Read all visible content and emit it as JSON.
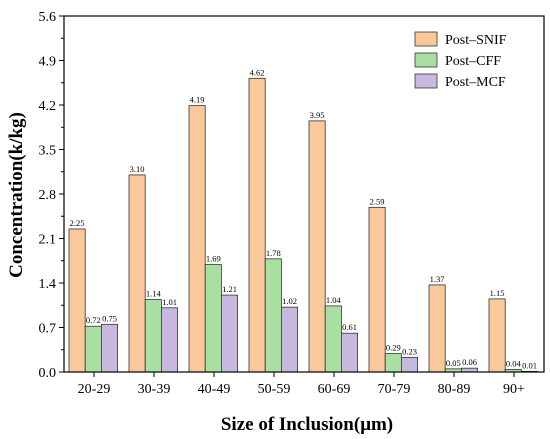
{
  "chart_data": {
    "type": "bar",
    "xlabel": "Size of Inclusion(μm)",
    "ylabel": "Concentration(k/kg)",
    "ylim": [
      0,
      5.6
    ],
    "yticks": [
      "0.0",
      "0.7",
      "1.4",
      "2.1",
      "2.8",
      "3.5",
      "4.2",
      "4.9",
      "5.6"
    ],
    "ytick_values": [
      0,
      0.7,
      1.4,
      2.1,
      2.8,
      3.5,
      4.2,
      4.9,
      5.6
    ],
    "grid": false,
    "legend_position": "top-right",
    "categories": [
      "20-29",
      "30-39",
      "40-49",
      "50-59",
      "60-69",
      "70-79",
      "80-89",
      "90+"
    ],
    "series": [
      {
        "name": "Post–SNIF",
        "color": "#f9c89b",
        "values": [
          2.25,
          3.1,
          4.19,
          4.62,
          3.95,
          2.59,
          1.37,
          1.15
        ],
        "labels": [
          "2.25",
          "3.10",
          "4.19",
          "4.62",
          "3.95",
          "2.59",
          "1.37",
          "1.15"
        ]
      },
      {
        "name": "Post–CFF",
        "color": "#a9e0a1",
        "values": [
          0.72,
          1.14,
          1.69,
          1.78,
          1.04,
          0.29,
          0.05,
          0.04
        ],
        "labels": [
          "0.72",
          "1.14",
          "1.69",
          "1.78",
          "1.04",
          "0.29",
          "0.05",
          "0.04"
        ]
      },
      {
        "name": "Post–MCF",
        "color": "#c8b8e0",
        "values": [
          0.75,
          1.01,
          1.21,
          1.02,
          0.61,
          0.23,
          0.06,
          0.01
        ],
        "labels": [
          "0.75",
          "1.01",
          "1.21",
          "1.02",
          "0.61",
          "0.23",
          "0.06",
          "0.01"
        ]
      }
    ]
  }
}
